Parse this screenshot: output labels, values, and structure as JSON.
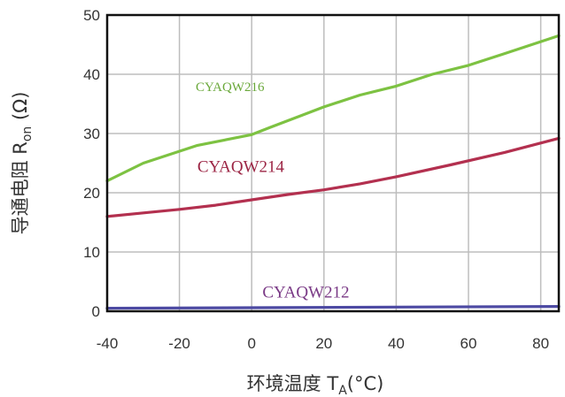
{
  "chart_data": {
    "type": "line",
    "xlabel": "环境温度 T_A(°C)",
    "xlabel_parts": {
      "main": "环境温度 T",
      "sub": "A",
      "tail": "(°C)"
    },
    "ylabel": "导通电阻 R_on (Ω)",
    "ylabel_parts": {
      "main": "导通电阻 R",
      "sub": "on",
      "tail": " (Ω)"
    },
    "xlim": [
      -40,
      85
    ],
    "ylim": [
      0,
      50
    ],
    "x_ticks": [
      -40,
      -20,
      0,
      20,
      40,
      60,
      80
    ],
    "y_ticks": [
      0,
      10,
      20,
      30,
      40,
      50
    ],
    "grid": true,
    "series": [
      {
        "name": "CYAQW216",
        "color": "#7dc242",
        "points": [
          [
            -40,
            22
          ],
          [
            -30,
            25
          ],
          [
            -15,
            28
          ],
          [
            0,
            29.8
          ],
          [
            5,
            31
          ],
          [
            20,
            34.5
          ],
          [
            30,
            36.5
          ],
          [
            40,
            38
          ],
          [
            50,
            40
          ],
          [
            60,
            41.5
          ],
          [
            70,
            43.5
          ],
          [
            85,
            46.5
          ]
        ]
      },
      {
        "name": "CYAQW214",
        "color": "#b3304f",
        "points": [
          [
            -40,
            16
          ],
          [
            -30,
            16.6
          ],
          [
            -20,
            17.2
          ],
          [
            -10,
            17.9
          ],
          [
            0,
            18.8
          ],
          [
            10,
            19.7
          ],
          [
            20,
            20.5
          ],
          [
            30,
            21.5
          ],
          [
            40,
            22.7
          ],
          [
            55,
            24.7
          ],
          [
            70,
            26.8
          ],
          [
            85,
            29.2
          ]
        ]
      },
      {
        "name": "CYAQW212",
        "color": "#4d4aa3",
        "points": [
          [
            -40,
            0.5
          ],
          [
            0,
            0.6
          ],
          [
            40,
            0.7
          ],
          [
            85,
            0.8
          ]
        ]
      }
    ],
    "annotations": [
      {
        "text": "CYAQW216",
        "color": "#6aa83a",
        "x": -6,
        "y": 37.2,
        "size": 15
      },
      {
        "text": "CYAQW214",
        "color": "#9c2645",
        "x": -3,
        "y": 23.5,
        "size": 19
      },
      {
        "text": "CYAQW212",
        "color": "#7a3a86",
        "x": 15,
        "y": 2.3,
        "size": 19
      }
    ]
  }
}
